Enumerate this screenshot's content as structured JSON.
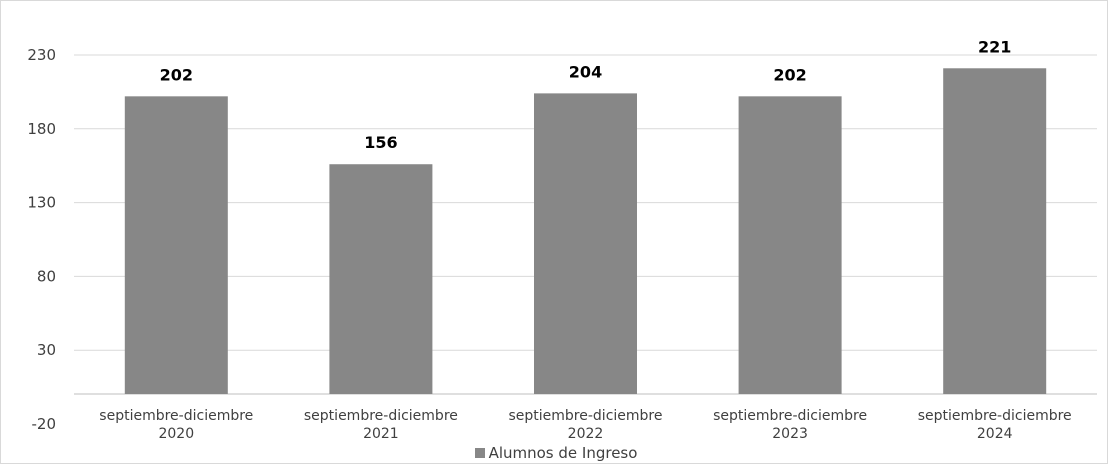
{
  "chart_data": {
    "type": "bar",
    "title": "",
    "categories": [
      [
        "septiembre-diciembre",
        "2020"
      ],
      [
        "septiembre-diciembre",
        "2021"
      ],
      [
        "septiembre-diciembre",
        "2022"
      ],
      [
        "septiembre-diciembre",
        "2023"
      ],
      [
        "septiembre-diciembre",
        "2024"
      ]
    ],
    "series": [
      {
        "name": "Alumnos de Ingreso",
        "values": [
          202,
          156,
          204,
          202,
          221
        ],
        "color": "#878787"
      }
    ],
    "yticks": [
      "230",
      "180",
      "130",
      "80",
      "30",
      "-20"
    ],
    "ylim": [
      -20,
      230
    ],
    "grid": true,
    "legend_position": "bottom"
  }
}
